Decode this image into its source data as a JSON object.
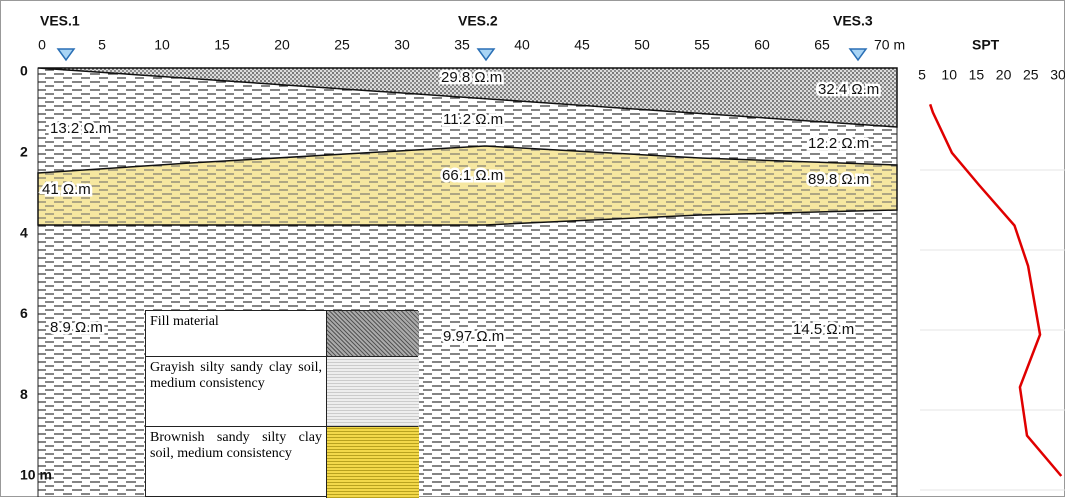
{
  "section": {
    "ves_labels": [
      "VES.1",
      "VES.2",
      "VES.3"
    ],
    "ves_positions": [
      2,
      37,
      68
    ],
    "x_ticks": [
      "0",
      "5",
      "10",
      "15",
      "20",
      "25",
      "30",
      "35",
      "40",
      "45",
      "50",
      "55",
      "60",
      "65",
      "70 m"
    ],
    "depth_ticks": [
      "0",
      "2",
      "4",
      "6",
      "8",
      "10 m"
    ],
    "resistivity_labels": [
      "29.8 Ω.m",
      "32.4 Ω.m",
      "13.2 Ω.m",
      "11.2 Ω.m",
      "12.2 Ω.m",
      "41 Ω.m",
      "66.1 Ω.m",
      "89.8 Ω.m",
      "8.9 Ω.m",
      "9.97 Ω.m",
      "14.5 Ω.m"
    ]
  },
  "legend": [
    "Fill material",
    "Grayish silty sandy clay soil, medium consistency",
    "Brownish sandy silty clay soil, medium consistency"
  ],
  "spt": {
    "title": "SPT",
    "xticks": [
      5,
      10,
      15,
      20,
      25,
      30
    ],
    "depth": [
      0.8,
      1.0,
      2.0,
      2.8,
      3.8,
      4.8,
      6.5,
      7.8,
      9.0,
      10.0
    ],
    "values": [
      6.5,
      7.0,
      10.5,
      15.5,
      22.0,
      24.5,
      26.7,
      23.0,
      24.3,
      30.6
    ],
    "color": "#e00000"
  }
}
